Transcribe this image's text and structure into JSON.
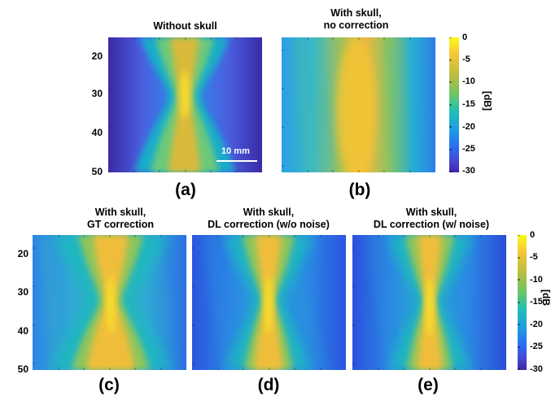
{
  "panels": [
    {
      "letter": "(a)",
      "title": "Without skull",
      "kind": "noskull"
    },
    {
      "letter": "(b)",
      "title": "With skull,\nno correction",
      "kind": "nocorr"
    },
    {
      "letter": "(c)",
      "title": "With skull,\nGT correction",
      "kind": "gt"
    },
    {
      "letter": "(d)",
      "title": "With skull,\nDL correction (w/o noise)",
      "kind": "dl1"
    },
    {
      "letter": "(e)",
      "title": "With skull,\nDL correction (w/ noise)",
      "kind": "dl2"
    }
  ],
  "y_ticks": [
    "20",
    "30",
    "40",
    "50"
  ],
  "colorbar": {
    "ticks": [
      "0",
      "-5",
      "-10",
      "-15",
      "-20",
      "-25",
      "-30"
    ],
    "label": "[dB]",
    "label_bottom": "[dB"
  },
  "scale_bar": {
    "label": "10 mm"
  },
  "colors": {
    "parula_low": "#3e26a8",
    "parula_mid": "#1fbfb8",
    "parula_high": "#f9fb15",
    "accent": "#f5c43a"
  }
}
